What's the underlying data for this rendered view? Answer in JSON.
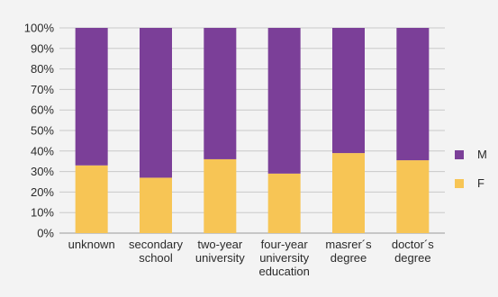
{
  "chart_data": {
    "type": "bar",
    "stacked": true,
    "percent": true,
    "categories": [
      [
        "unknown"
      ],
      [
        "secondary",
        "school"
      ],
      [
        "two-year",
        "university"
      ],
      [
        "four-year",
        "university",
        "education"
      ],
      [
        "masrer´s",
        "degree"
      ],
      [
        "doctor´s",
        "degree"
      ]
    ],
    "series": [
      {
        "name": "F",
        "color": "#f7c555",
        "values": [
          33,
          27,
          36,
          29,
          39,
          35.5
        ]
      },
      {
        "name": "M",
        "color": "#7b3f98",
        "values": [
          67,
          73,
          64,
          71,
          61,
          64.5
        ]
      }
    ],
    "y_ticks": [
      "0%",
      "10%",
      "20%",
      "30%",
      "40%",
      "50%",
      "60%",
      "70%",
      "80%",
      "90%",
      "100%"
    ],
    "ylim": [
      0,
      100
    ],
    "grid": true,
    "legend_position": "right",
    "legend_order": [
      "M",
      "F"
    ]
  }
}
